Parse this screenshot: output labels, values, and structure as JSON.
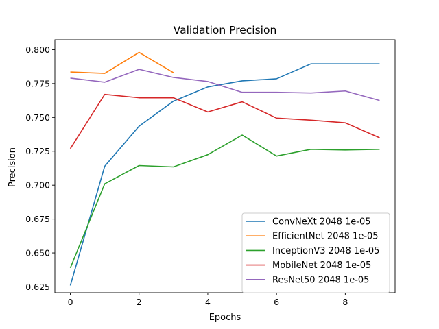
{
  "chart_data": {
    "type": "line",
    "title": "Validation Precision",
    "xlabel": "Epochs",
    "ylabel": "Precision",
    "xlim": [
      -0.45,
      9.45
    ],
    "ylim": [
      0.6207,
      0.8073
    ],
    "x_ticks": [
      0,
      2,
      4,
      6,
      8
    ],
    "y_ticks": [
      0.625,
      0.65,
      0.675,
      0.7,
      0.725,
      0.75,
      0.775,
      0.8
    ],
    "x_tick_labels": [
      "0",
      "2",
      "4",
      "6",
      "8"
    ],
    "y_tick_labels": [
      "0.625",
      "0.650",
      "0.675",
      "0.700",
      "0.725",
      "0.750",
      "0.775",
      "0.800"
    ],
    "grid": false,
    "legend_position": "lower-right",
    "series": [
      {
        "name": "ConvNeXt 2048 1e-05",
        "color": "#1f77b4",
        "x": [
          0,
          1,
          2,
          3,
          4,
          5,
          6,
          7,
          8,
          9
        ],
        "values": [
          0.626,
          0.714,
          0.7435,
          0.762,
          0.7725,
          0.777,
          0.7785,
          0.7895,
          0.7895,
          0.7895
        ]
      },
      {
        "name": "EfficientNet 2048 1e-05",
        "color": "#ff7f0e",
        "x": [
          0,
          1,
          2,
          3
        ],
        "values": [
          0.7835,
          0.7825,
          0.798,
          0.783
        ]
      },
      {
        "name": "InceptionV3 2048 1e-05",
        "color": "#2ca02c",
        "x": [
          0,
          1,
          2,
          3,
          4,
          5,
          6,
          7,
          8,
          9
        ],
        "values": [
          0.639,
          0.701,
          0.7145,
          0.7135,
          0.7225,
          0.737,
          0.7215,
          0.7265,
          0.726,
          0.7265
        ]
      },
      {
        "name": "MobileNet 2048 1e-05",
        "color": "#d62728",
        "x": [
          0,
          1,
          2,
          3,
          4,
          5,
          6,
          7,
          8,
          9
        ],
        "values": [
          0.727,
          0.767,
          0.7645,
          0.7645,
          0.754,
          0.7615,
          0.7495,
          0.748,
          0.746,
          0.735
        ]
      },
      {
        "name": "ResNet50 2048 1e-05",
        "color": "#9467bd",
        "x": [
          0,
          1,
          2,
          3,
          4,
          5,
          6,
          7,
          8,
          9
        ],
        "values": [
          0.779,
          0.776,
          0.7855,
          0.7795,
          0.7765,
          0.7685,
          0.7685,
          0.768,
          0.7695,
          0.7625
        ]
      }
    ]
  }
}
